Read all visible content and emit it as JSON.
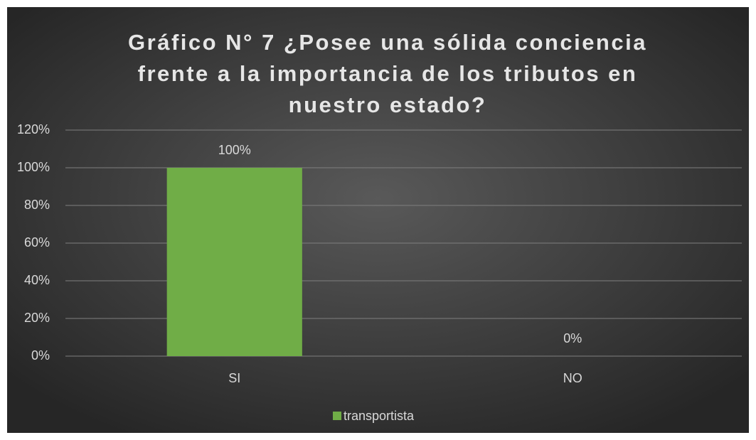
{
  "chart_data": {
    "type": "bar",
    "title": "Gráfico N° 7 ¿Posee una sólida conciencia frente a la importancia de los tributos en nuestro estado?",
    "categories": [
      "SI",
      "NO"
    ],
    "series": [
      {
        "name": "transportista",
        "color": "#70ad47",
        "values": [
          100,
          0
        ],
        "value_labels": [
          "100%",
          "0%"
        ]
      }
    ],
    "ylim": [
      0,
      120
    ],
    "yticks": [
      {
        "value": 0,
        "label": "0%"
      },
      {
        "value": 20,
        "label": "20%"
      },
      {
        "value": 40,
        "label": "40%"
      },
      {
        "value": 60,
        "label": "60%"
      },
      {
        "value": 80,
        "label": "80%"
      },
      {
        "value": 100,
        "label": "100%"
      },
      {
        "value": 120,
        "label": "120%"
      }
    ],
    "grid": true,
    "legend": "bottom"
  }
}
